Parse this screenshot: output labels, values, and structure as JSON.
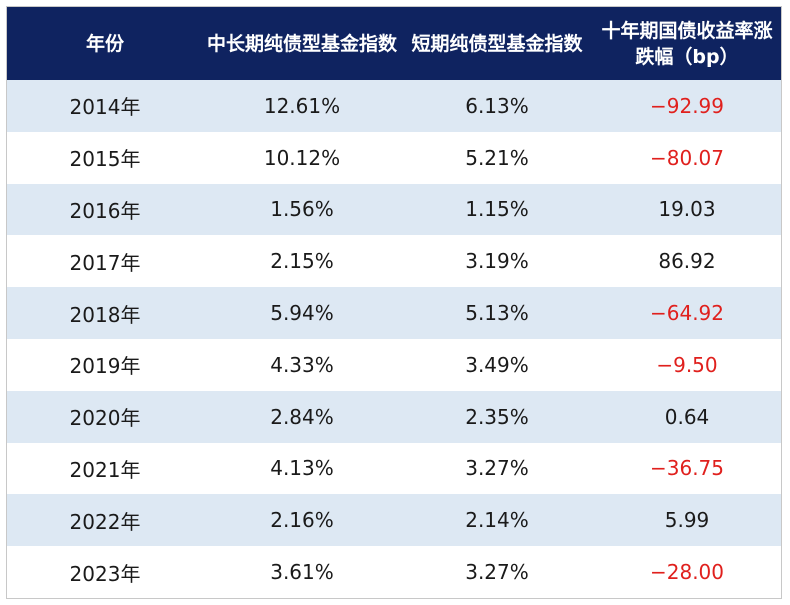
{
  "headers": [
    "年份",
    "中长期纯债型基金指数",
    "短期纯债型基金指数",
    "十年期国债收益率涨跌幅（bp）"
  ],
  "rows": [
    {
      "year": "2014年",
      "mid_long": "12.61%",
      "short": "6.13%",
      "bond_change": "−92.99",
      "negative": true
    },
    {
      "year": "2015年",
      "mid_long": "10.12%",
      "short": "5.21%",
      "bond_change": "−80.07",
      "negative": true
    },
    {
      "year": "2016年",
      "mid_long": "1.56%",
      "short": "1.15%",
      "bond_change": "19.03",
      "negative": false
    },
    {
      "year": "2017年",
      "mid_long": "2.15%",
      "short": "3.19%",
      "bond_change": "86.92",
      "negative": false
    },
    {
      "year": "2018年",
      "mid_long": "5.94%",
      "short": "5.13%",
      "bond_change": "−64.92",
      "negative": true
    },
    {
      "year": "2019年",
      "mid_long": "4.33%",
      "short": "3.49%",
      "bond_change": "−9.50",
      "negative": true
    },
    {
      "year": "2020年",
      "mid_long": "2.84%",
      "short": "2.35%",
      "bond_change": "0.64",
      "negative": false
    },
    {
      "year": "2021年",
      "mid_long": "4.13%",
      "short": "3.27%",
      "bond_change": "−36.75",
      "negative": true
    },
    {
      "year": "2022年",
      "mid_long": "2.16%",
      "short": "2.14%",
      "bond_change": "5.99",
      "negative": false
    },
    {
      "year": "2023年",
      "mid_long": "3.61%",
      "short": "3.27%",
      "bond_change": "−28.00",
      "negative": true
    }
  ],
  "colors": {
    "header_bg": "#0f2360",
    "header_text": "#ffffff",
    "stripe": "#dde8f3",
    "negative": "#e0201d",
    "text": "#1a1a1a"
  }
}
